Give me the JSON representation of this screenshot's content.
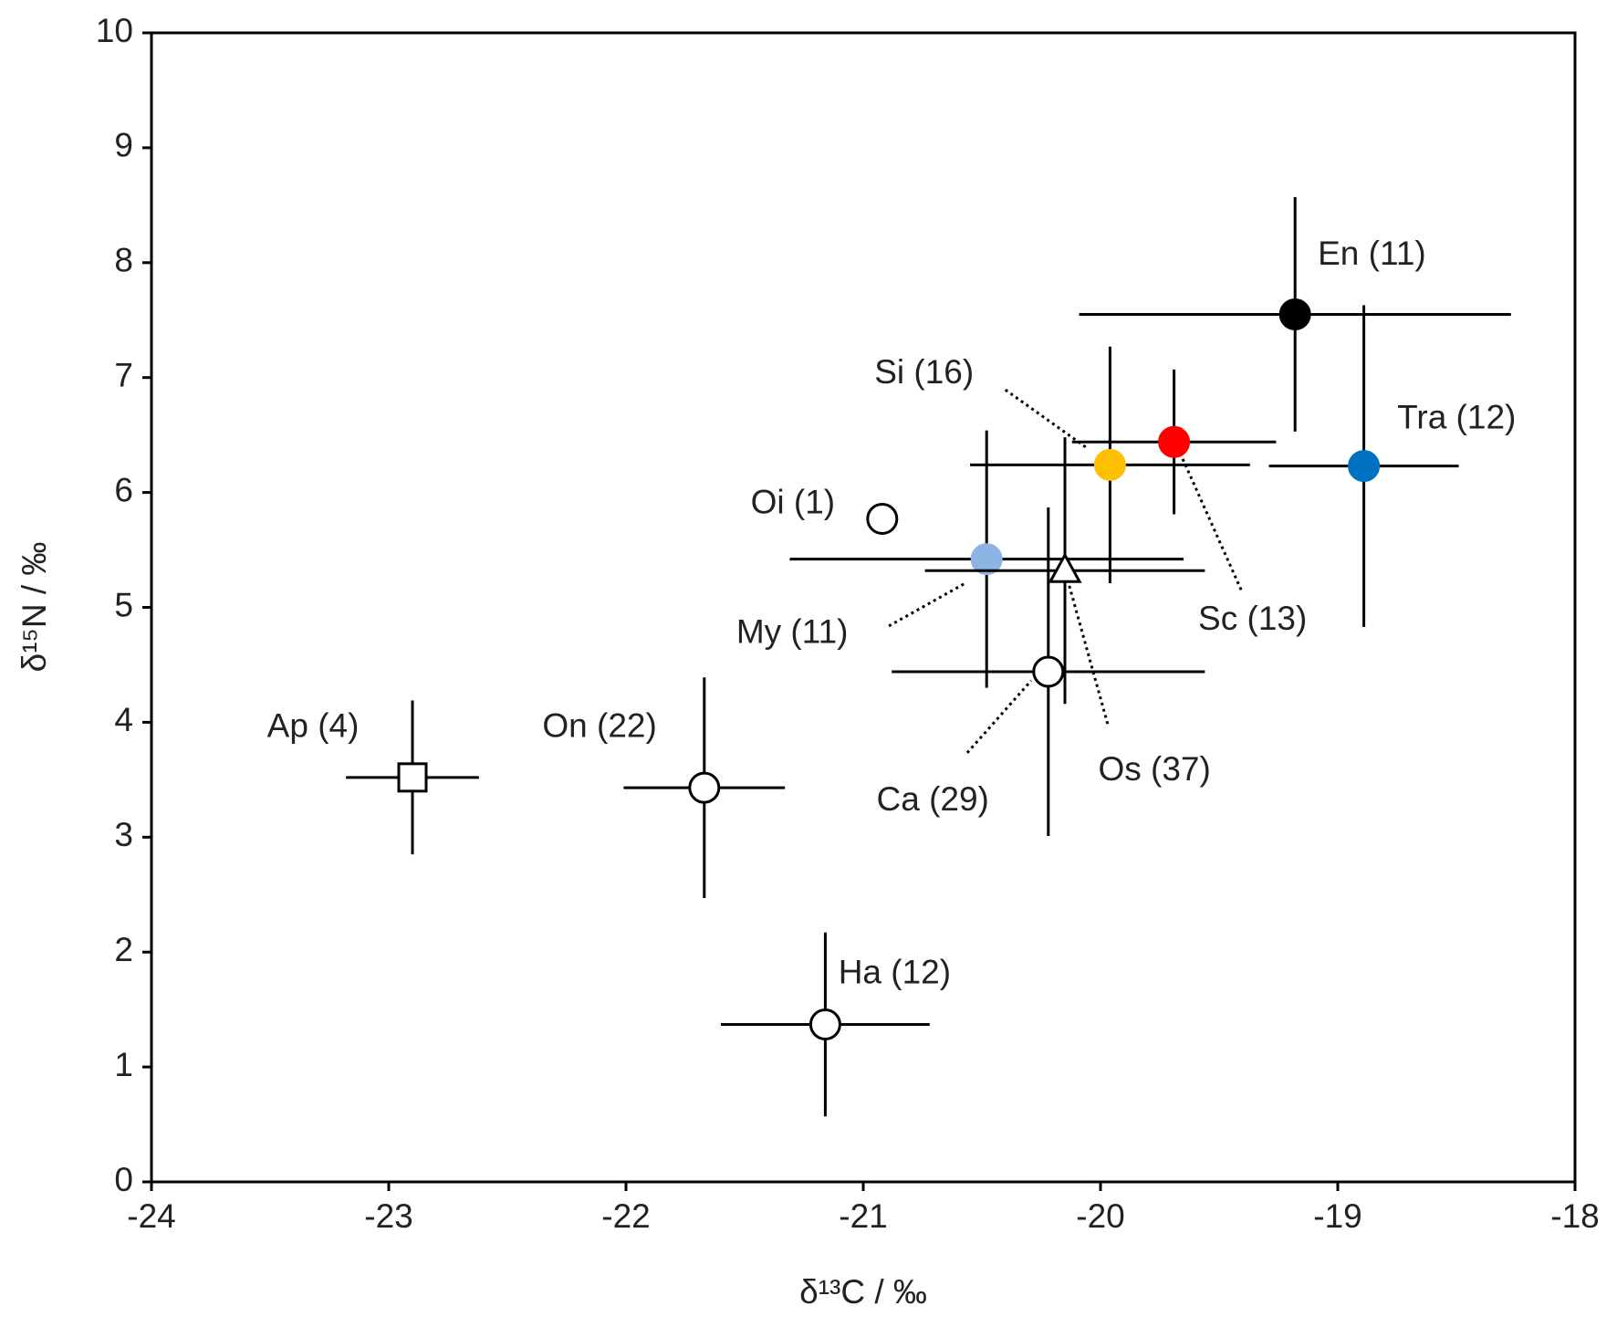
{
  "chart_data": {
    "type": "scatter",
    "x_label": "δ¹³C / ‰",
    "y_label": "δ¹⁵N / ‰",
    "xlim": [
      -24,
      -18
    ],
    "xticks": [
      -24,
      -23,
      -22,
      -21,
      -20,
      -19,
      -18
    ],
    "ylim": [
      0,
      10
    ],
    "yticks": [
      0,
      1,
      2,
      3,
      4,
      5,
      6,
      7,
      8,
      9,
      10
    ],
    "grid": false,
    "series": [
      {
        "name": "En (11)",
        "color": "#000000",
        "marker": "circle",
        "x": [
          -19.18
        ],
        "y": [
          7.55
        ],
        "xerr": [
          0.91
        ],
        "yerr": [
          1.02
        ]
      },
      {
        "name": "Tra (12)",
        "color": "#0070c0",
        "marker": "circle",
        "x": [
          -18.89
        ],
        "y": [
          6.23
        ],
        "xerr": [
          0.4
        ],
        "yerr": [
          1.4
        ]
      },
      {
        "name": "Sc (13)",
        "color": "#ff0000",
        "marker": "circle",
        "x": [
          -19.69
        ],
        "y": [
          6.44
        ],
        "xerr": [
          0.43
        ],
        "yerr": [
          0.63
        ]
      },
      {
        "name": "Si (16)",
        "color": "#ffc000",
        "marker": "circle",
        "x": [
          -19.96
        ],
        "y": [
          6.24
        ],
        "xerr": [
          0.59
        ],
        "yerr": [
          1.03
        ]
      },
      {
        "name": "My (11)",
        "color": "#8eb4e3",
        "marker": "circle",
        "x": [
          -20.48
        ],
        "y": [
          5.42
        ],
        "xerr": [
          0.83
        ],
        "yerr": [
          1.12
        ]
      },
      {
        "name": "Os (37)",
        "color": "#ffffff",
        "marker": "triangle",
        "x": [
          -20.15
        ],
        "y": [
          5.32
        ],
        "xerr": [
          0.59
        ],
        "yerr": [
          1.16
        ]
      },
      {
        "name": "Ca (29)",
        "color": "#ffffff",
        "marker": "circle",
        "x": [
          -20.22
        ],
        "y": [
          4.44
        ],
        "xerr": [
          0.66
        ],
        "yerr": [
          1.43
        ]
      },
      {
        "name": "Oi (1)",
        "color": "#ffffff",
        "marker": "circle",
        "x": [
          -20.92
        ],
        "y": [
          5.77
        ]
      },
      {
        "name": "Ap (4)",
        "color": "#ffffff",
        "marker": "square",
        "x": [
          -22.9
        ],
        "y": [
          3.52
        ],
        "xerr": [
          0.28
        ],
        "yerr": [
          0.67
        ]
      },
      {
        "name": "On (22)",
        "color": "#ffffff",
        "marker": "circle",
        "x": [
          -21.67
        ],
        "y": [
          3.43
        ],
        "xerr": [
          0.34
        ],
        "yerr": [
          0.96
        ]
      },
      {
        "name": "Ha (12)",
        "color": "#ffffff",
        "marker": "circle",
        "x": [
          -21.16
        ],
        "y": [
          1.37
        ],
        "xerr": [
          0.44
        ],
        "yerr": [
          0.8
        ]
      }
    ]
  }
}
